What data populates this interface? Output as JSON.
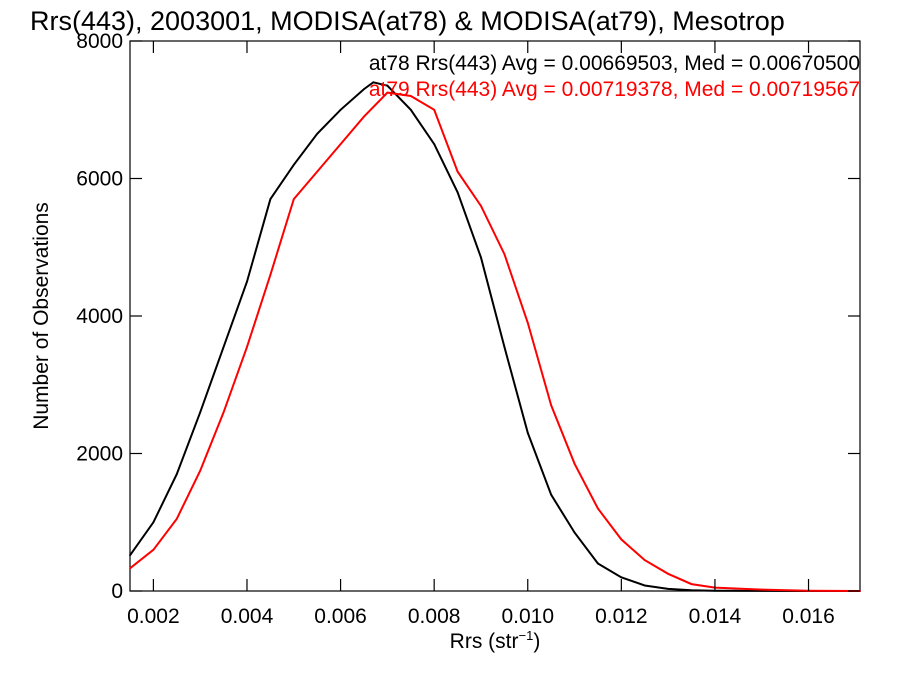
{
  "chart_data": {
    "type": "line",
    "title": "Rrs(443), 2003001, MODISA(at78) & MODISA(at79), Mesotrop",
    "xlabel": "Rrs (str",
    "xlabel_sup": "−1",
    "xlabel_close": ")",
    "ylabel": "Number of Observations",
    "xlim": [
      0.0015,
      0.0171
    ],
    "ylim": [
      0,
      8000
    ],
    "xticks": [
      {
        "value": 0.002,
        "label": "0.002"
      },
      {
        "value": 0.004,
        "label": "0.004"
      },
      {
        "value": 0.006,
        "label": "0.006"
      },
      {
        "value": 0.008,
        "label": "0.008"
      },
      {
        "value": 0.01,
        "label": "0.010"
      },
      {
        "value": 0.012,
        "label": "0.012"
      },
      {
        "value": 0.014,
        "label": "0.014"
      },
      {
        "value": 0.016,
        "label": "0.016"
      }
    ],
    "yticks": [
      {
        "value": 0,
        "label": "0"
      },
      {
        "value": 2000,
        "label": "2000"
      },
      {
        "value": 4000,
        "label": "4000"
      },
      {
        "value": 6000,
        "label": "6000"
      },
      {
        "value": 8000,
        "label": "8000"
      }
    ],
    "grid": false,
    "legend_position": "top-right",
    "series": [
      {
        "name": "at78 Rrs(443) Avg = 0.00669503, Med = 0.00670500",
        "color": "#000000",
        "x": [
          0.0015,
          0.002,
          0.0025,
          0.003,
          0.0035,
          0.004,
          0.0045,
          0.005,
          0.0055,
          0.006,
          0.0065,
          0.0067,
          0.007,
          0.0075,
          0.008,
          0.0085,
          0.009,
          0.0095,
          0.01,
          0.0105,
          0.011,
          0.0115,
          0.012,
          0.0125,
          0.013,
          0.0135,
          0.014,
          0.015,
          0.016,
          0.0171
        ],
        "y": [
          520,
          1000,
          1700,
          2600,
          3550,
          4500,
          5700,
          6200,
          6650,
          7000,
          7300,
          7400,
          7350,
          7000,
          6500,
          5800,
          4850,
          3550,
          2300,
          1400,
          850,
          400,
          200,
          80,
          30,
          10,
          5,
          2,
          0,
          0
        ]
      },
      {
        "name": "at79 Rrs(443) Avg = 0.00719378, Med = 0.00719567",
        "color": "#ff0000",
        "x": [
          0.0015,
          0.002,
          0.0025,
          0.003,
          0.0035,
          0.004,
          0.0045,
          0.005,
          0.0055,
          0.006,
          0.0065,
          0.007,
          0.0075,
          0.008,
          0.0085,
          0.009,
          0.0095,
          0.01,
          0.0105,
          0.011,
          0.0115,
          0.012,
          0.0125,
          0.013,
          0.0135,
          0.014,
          0.015,
          0.016,
          0.0171
        ],
        "y": [
          330,
          600,
          1050,
          1750,
          2600,
          3550,
          4600,
          5700,
          6100,
          6500,
          6900,
          7250,
          7200,
          7000,
          6100,
          5600,
          4900,
          3900,
          2700,
          1850,
          1200,
          750,
          450,
          250,
          100,
          50,
          20,
          5,
          0
        ]
      }
    ]
  }
}
